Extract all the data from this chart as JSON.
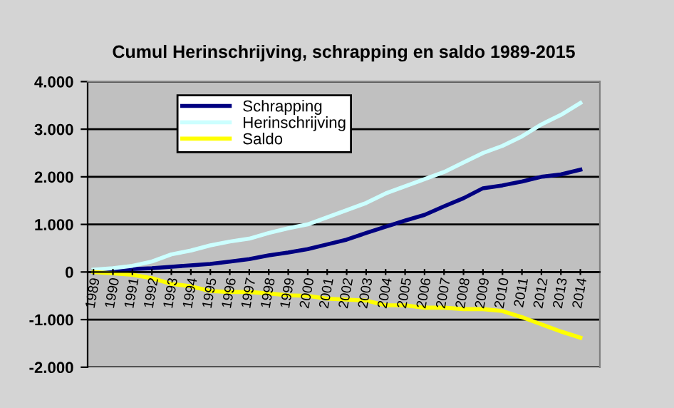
{
  "chart_data": {
    "type": "line",
    "title": "Cumul Herinschrijving, schrapping en saldo 1989-2015",
    "categories": [
      "1989",
      "1990",
      "1991",
      "1992",
      "1993",
      "1994",
      "1995",
      "1996",
      "1997",
      "1998",
      "1999",
      "2000",
      "2001",
      "2002",
      "2003",
      "2004",
      "2005",
      "2006",
      "2007",
      "2008",
      "2009",
      "2010",
      "2011",
      "2012",
      "2013",
      "2014"
    ],
    "series": [
      {
        "name": "Schrapping",
        "color": "#000080",
        "values": [
          20,
          40,
          60,
          80,
          110,
          140,
          170,
          220,
          270,
          350,
          410,
          480,
          580,
          680,
          820,
          950,
          1080,
          1200,
          1380,
          1550,
          1760,
          1820,
          1900,
          2000,
          2050,
          2150
        ]
      },
      {
        "name": "Herinschrijving",
        "color": "#ccffff",
        "values": [
          50,
          80,
          130,
          220,
          370,
          450,
          560,
          640,
          700,
          820,
          920,
          1000,
          1150,
          1300,
          1450,
          1650,
          1800,
          1950,
          2100,
          2300,
          2500,
          2650,
          2850,
          3100,
          3300,
          3550
        ]
      },
      {
        "name": "Saldo",
        "color": "#ffff00",
        "values": [
          0,
          -30,
          -60,
          -130,
          -250,
          -300,
          -400,
          -420,
          -420,
          -450,
          -490,
          -500,
          -560,
          -580,
          -600,
          -700,
          -700,
          -750,
          -750,
          -780,
          -780,
          -820,
          -950,
          -1100,
          -1250,
          -1380
        ]
      }
    ],
    "ylim": [
      -2000,
      4000
    ],
    "yticks": [
      {
        "value": -2000,
        "label": "-2.000"
      },
      {
        "value": -1000,
        "label": "-1.000"
      },
      0,
      {
        "value": 1000,
        "label": "1.000"
      },
      {
        "value": 2000,
        "label": "2.000"
      },
      {
        "value": 3000,
        "label": "3.000"
      },
      {
        "value": 4000,
        "label": "4.000"
      }
    ],
    "grid": "y",
    "legend": "top left",
    "marker": "none",
    "line_style": "solid"
  }
}
